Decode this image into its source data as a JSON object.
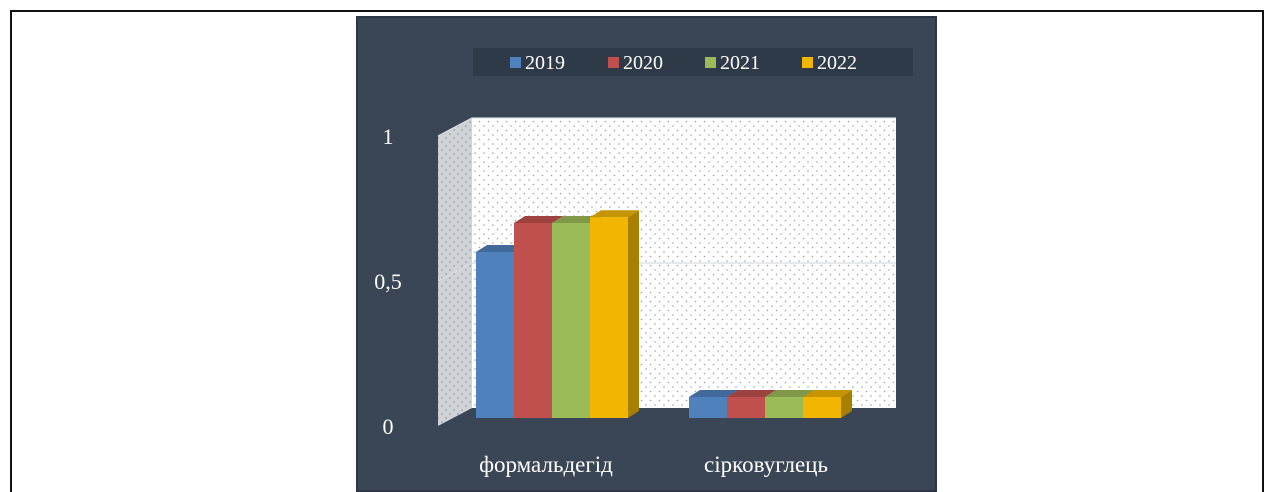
{
  "chart_data": {
    "type": "bar",
    "title": "",
    "xlabel": "",
    "ylabel": "",
    "ylim": [
      0,
      1
    ],
    "yticks": [
      {
        "value": 0,
        "label": "0"
      },
      {
        "value": 0.5,
        "label": "0,5"
      },
      {
        "value": 1,
        "label": "1"
      }
    ],
    "grid": true,
    "legend_position": "top",
    "categories": [
      "формальдегід",
      "сірковуглець"
    ],
    "series": [
      {
        "name": "2019",
        "values": [
          0.6,
          0.1
        ],
        "color": "#4f81bd"
      },
      {
        "name": "2020",
        "values": [
          0.7,
          0.1
        ],
        "color": "#c0504d"
      },
      {
        "name": "2021",
        "values": [
          0.7,
          0.1
        ],
        "color": "#9bbb59"
      },
      {
        "name": "2022",
        "values": [
          0.72,
          0.1
        ],
        "color": "#f2b500"
      }
    ]
  },
  "colors": {
    "panel_background": "#3a4656",
    "text": "#ffffff"
  }
}
